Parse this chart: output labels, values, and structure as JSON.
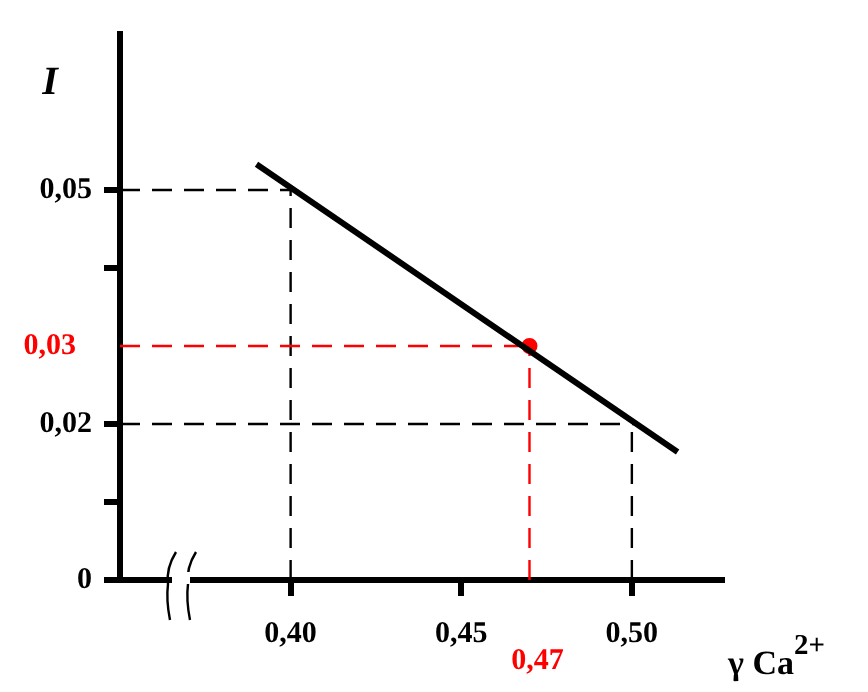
{
  "chart_data": {
    "type": "line",
    "xlabel": "γ Ca$^{2+}$",
    "ylabel": "I",
    "xlim": [
      0.35,
      0.527
    ],
    "ylim": [
      0,
      0.07
    ],
    "xticks": [
      {
        "value": 0.4,
        "label": "0,40"
      },
      {
        "value": 0.45,
        "label": "0,45"
      },
      {
        "value": 0.5,
        "label": "0,50"
      }
    ],
    "yticks": [
      0,
      {
        "value": 0.01,
        "label": null
      },
      {
        "value": 0.02,
        "label": "0,02"
      },
      {
        "value": 0.04,
        "label": null
      },
      {
        "value": 0.05,
        "label": "0,05"
      }
    ],
    "series": [
      {
        "color": "#000000",
        "x": [
          0.39,
          0.5134
        ],
        "values": [
          0.0533,
          0.0164
        ],
        "marker": "none",
        "line_style": "solid"
      },
      {
        "type": "scatter",
        "color": "#ff0000",
        "x": [
          0.47
        ],
        "values": [
          0.03
        ],
        "marker": "circle"
      }
    ],
    "ref_lines": [
      {
        "axis": "y",
        "value": 0.05,
        "color": "#000000",
        "line_style": "dashed"
      },
      {
        "axis": "y",
        "value": 0.02,
        "color": "#000000",
        "line_style": "dashed"
      },
      {
        "axis": "x",
        "value": 0.4,
        "color": "#000000",
        "line_style": "dashed"
      },
      {
        "axis": "x",
        "value": 0.5,
        "color": "#000000",
        "line_style": "dashed"
      },
      {
        "axis": "y",
        "value": 0.03,
        "label": "0,03",
        "color": "#ff0000",
        "line_style": "dashed"
      },
      {
        "axis": "x",
        "value": 0.47,
        "label": "0,47",
        "color": "#ff0000",
        "line_style": "dashed"
      }
    ],
    "grid": false,
    "legend": false
  }
}
